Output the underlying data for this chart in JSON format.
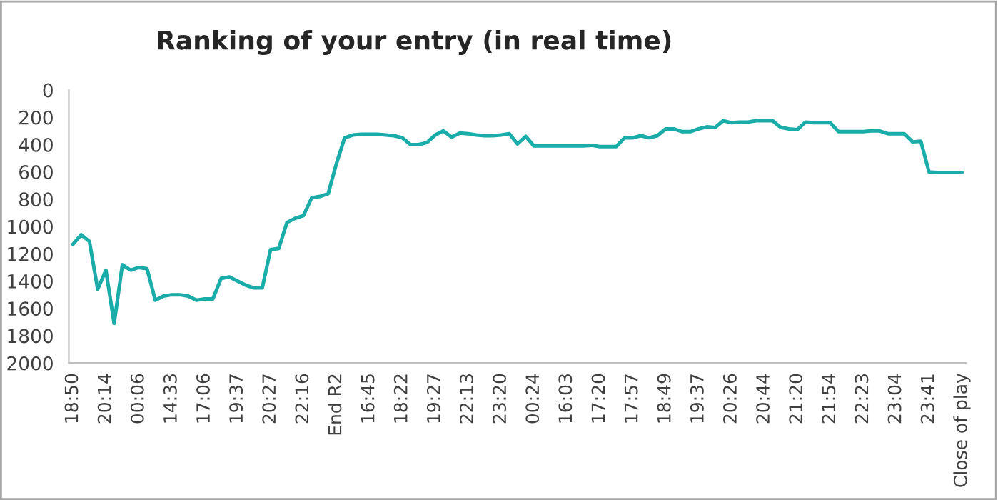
{
  "chart_data": {
    "type": "line",
    "title": "Ranking of your entry (in real time)",
    "categories": [
      "18:50",
      null,
      null,
      null,
      "20:14",
      null,
      null,
      null,
      "00:06",
      null,
      null,
      null,
      "14:33",
      null,
      null,
      null,
      "17:06",
      null,
      null,
      null,
      "19:37",
      null,
      null,
      null,
      "20:27",
      null,
      null,
      null,
      "22:16",
      null,
      null,
      null,
      "End R2",
      null,
      null,
      null,
      "16:45",
      null,
      null,
      null,
      "18:22",
      null,
      null,
      null,
      "19:27",
      null,
      null,
      null,
      "22:13",
      null,
      null,
      null,
      "23:20",
      null,
      null,
      null,
      "00:24",
      null,
      null,
      null,
      "16:03",
      null,
      null,
      null,
      "17:20",
      null,
      null,
      null,
      "17:57",
      null,
      null,
      null,
      "18:49",
      null,
      null,
      null,
      "19:37",
      null,
      null,
      null,
      "20:26",
      null,
      null,
      null,
      "20:44",
      null,
      null,
      null,
      "21:20",
      null,
      null,
      null,
      "21:54",
      null,
      null,
      null,
      "22:23",
      null,
      null,
      null,
      "23:04",
      null,
      null,
      null,
      "23:41",
      null,
      null,
      null,
      "Close of play"
    ],
    "series": [
      {
        "color": "#1aaca8",
        "values": [
          1130,
          1060,
          1110,
          1460,
          1320,
          1710,
          1280,
          1320,
          1300,
          1310,
          1540,
          1510,
          1500,
          1500,
          1510,
          1540,
          1530,
          1530,
          1380,
          1370,
          1400,
          1430,
          1450,
          1450,
          1170,
          1160,
          970,
          940,
          920,
          790,
          780,
          760,
          540,
          350,
          330,
          325,
          325,
          325,
          330,
          335,
          350,
          400,
          400,
          385,
          330,
          300,
          345,
          315,
          320,
          330,
          335,
          335,
          330,
          320,
          395,
          340,
          410,
          410,
          410,
          410,
          410,
          410,
          410,
          405,
          415,
          415,
          415,
          350,
          350,
          335,
          350,
          335,
          285,
          285,
          305,
          305,
          285,
          270,
          275,
          225,
          240,
          235,
          235,
          225,
          225,
          225,
          275,
          285,
          290,
          235,
          240,
          240,
          240,
          305,
          305,
          305,
          305,
          300,
          300,
          320,
          320,
          320,
          380,
          375,
          600,
          605,
          605,
          605,
          605
        ]
      }
    ],
    "ylim": [
      2000,
      0
    ],
    "yticks": [
      0,
      200,
      400,
      600,
      800,
      1000,
      1200,
      1400,
      1600,
      1800,
      2000
    ],
    "grid": false,
    "legend": false,
    "marker": "none",
    "line_style": "solid"
  }
}
